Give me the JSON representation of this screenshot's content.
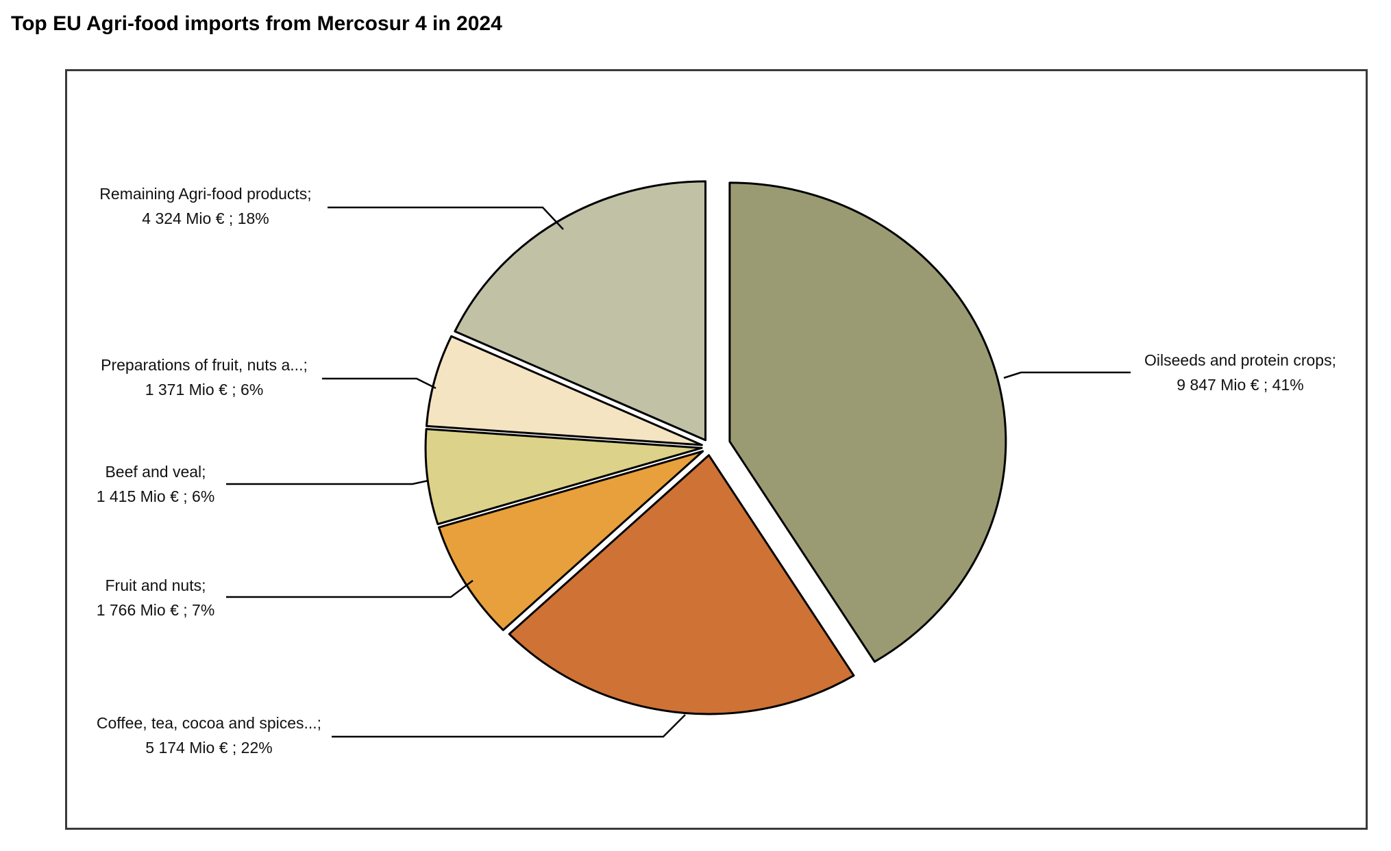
{
  "title": "Top EU Agri-food imports from Mercosur 4 in 2024",
  "chart_data": {
    "type": "pie",
    "title": "Top EU Agri-food imports from Mercosur 4 in 2024",
    "unit": "Mio €",
    "exploded": true,
    "slices": [
      {
        "name": "Oilseeds and protein crops",
        "value": 9847,
        "value_label": "9 847 Mio €",
        "percent": "41%",
        "color": "#9a9b72"
      },
      {
        "name": "Coffee, tea, cocoa and spices...",
        "value": 5174,
        "value_label": "5 174 Mio €",
        "percent": "22%",
        "color": "#ce7235"
      },
      {
        "name": "Fruit and nuts",
        "value": 1766,
        "value_label": "1 766 Mio €",
        "percent": "7%",
        "color": "#e8a03c"
      },
      {
        "name": "Beef and veal",
        "value": 1415,
        "value_label": "1 415 Mio €",
        "percent": "6%",
        "color": "#ddd289"
      },
      {
        "name": "Preparations of fruit, nuts a...",
        "value": 1371,
        "value_label": "1 371 Mio €",
        "percent": "6%",
        "color": "#f5e4c2"
      },
      {
        "name": "Remaining Agri-food products",
        "value": 4324,
        "value_label": "4 324 Mio €",
        "percent": "18%",
        "color": "#c1c1a6"
      }
    ]
  }
}
